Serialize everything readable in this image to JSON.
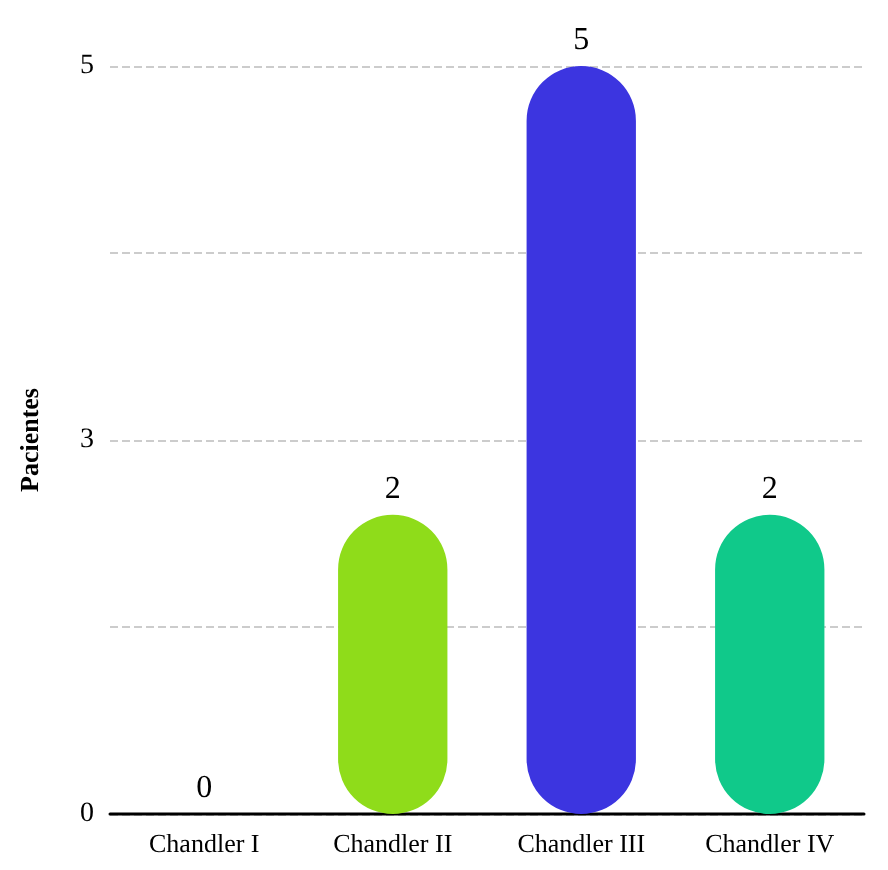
{
  "chart_data": {
    "type": "bar",
    "ylabel": "Pacientes",
    "categories": [
      "Chandler I",
      "Chandler II",
      "Chandler III",
      "Chandler IV"
    ],
    "values": [
      0,
      2,
      5,
      2
    ],
    "colors": [
      "#9e9e9e",
      "#8fdc1a",
      "#3c35e0",
      "#10c98a"
    ],
    "ylim": [
      0,
      5
    ],
    "yticks": [
      {
        "value": 0,
        "label": "0"
      },
      {
        "value": 1.25,
        "label": null
      },
      {
        "value": 2.5,
        "label": "3"
      },
      {
        "value": 3.75,
        "label": null
      },
      {
        "value": 5,
        "label": "5"
      }
    ],
    "grid": "y",
    "data_labels": true
  }
}
